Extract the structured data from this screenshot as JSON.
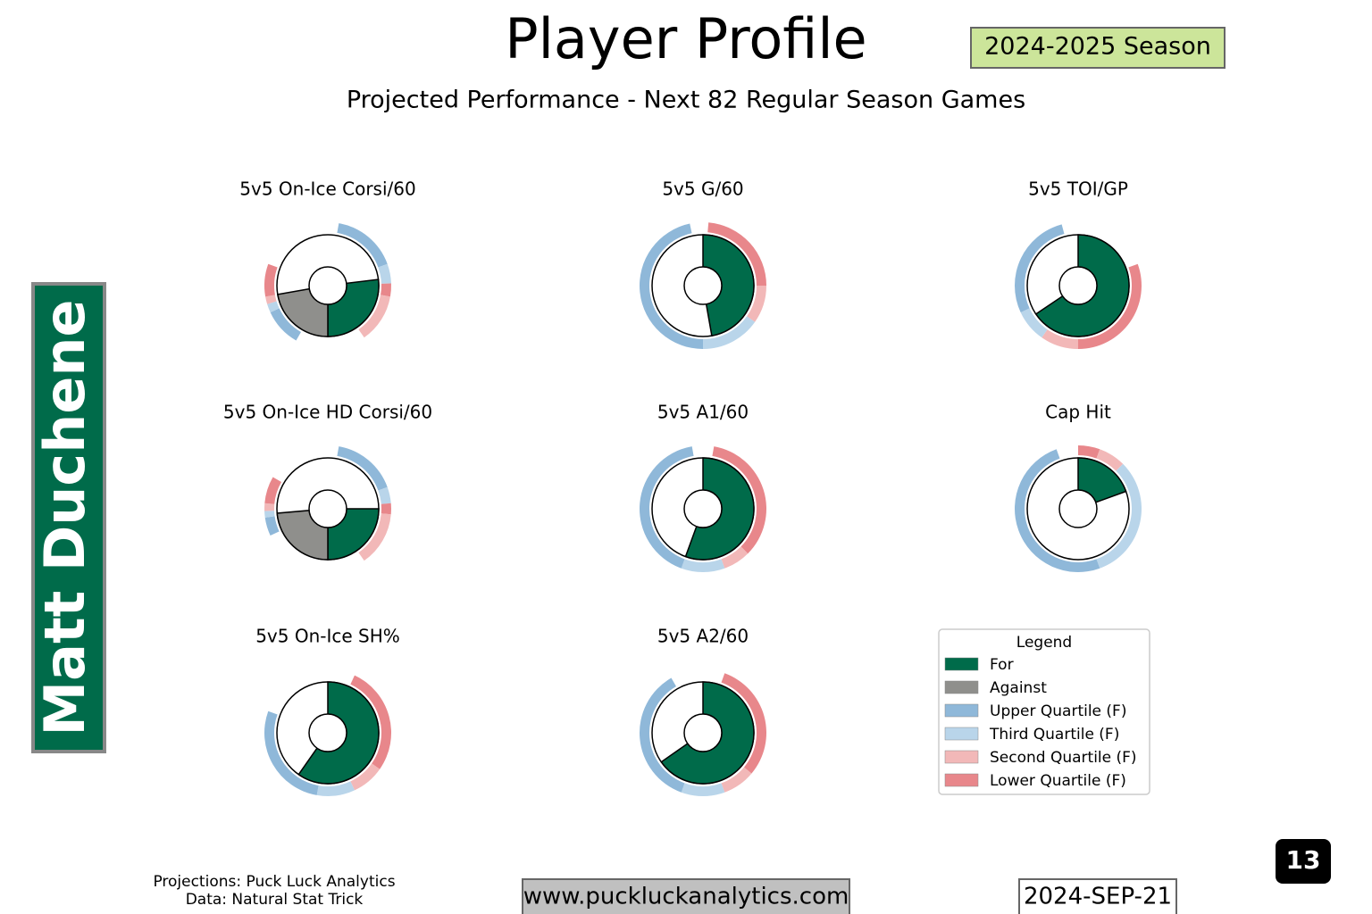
{
  "title": "Player Profile",
  "subtitle": "Projected Performance - Next 82 Regular Season Games",
  "season": "2024-2025 Season",
  "player": "Matt Duchene",
  "page_number": 13,
  "credits": [
    "Projections: Puck Luck Analytics",
    "Data: Natural Stat Trick"
  ],
  "website": "www.puckluckanalytics.com",
  "date": "2024-SEP-21",
  "legend": {
    "title": "Legend",
    "series": [
      {
        "name": "For",
        "color": "#006b4a"
      },
      {
        "name": "Against",
        "color": "#8f8f8c"
      },
      {
        "name": "Upper Quartile (F)",
        "color": "#8fb8d9"
      },
      {
        "name": "Third Quartile (F)",
        "color": "#b9d5ea"
      },
      {
        "name": "Second Quartile (F)",
        "color": "#f2b8b8"
      },
      {
        "name": "Lower Quartile (F)",
        "color": "#e8878b"
      }
    ]
  },
  "chart_data": [
    {
      "type": "donut",
      "title": "5v5 On-Ice Corsi/60",
      "wedges": [
        {
          "series": 0,
          "start": 83,
          "end": 180
        },
        {
          "series": 1,
          "start": 180,
          "end": 260
        }
      ],
      "ring": [
        {
          "series": 2,
          "start": 10,
          "end": 70
        },
        {
          "series": 3,
          "start": 70,
          "end": 88
        },
        {
          "series": 5,
          "start": 88,
          "end": 100
        },
        {
          "series": 4,
          "start": 100,
          "end": 145
        },
        {
          "series": 2,
          "start": 210,
          "end": 245
        },
        {
          "series": 3,
          "start": 245,
          "end": 253
        },
        {
          "series": 4,
          "start": 253,
          "end": 260
        },
        {
          "series": 5,
          "start": 260,
          "end": 290
        }
      ]
    },
    {
      "type": "donut",
      "title": "5v5 G/60",
      "wedges": [
        {
          "series": 0,
          "start": 0,
          "end": 170
        }
      ],
      "ring": [
        {
          "series": 5,
          "start": 5,
          "end": 90
        },
        {
          "series": 4,
          "start": 90,
          "end": 125
        },
        {
          "series": 3,
          "start": 125,
          "end": 180
        },
        {
          "series": 2,
          "start": 180,
          "end": 348
        }
      ]
    },
    {
      "type": "donut",
      "title": "5v5 TOI/GP",
      "wedges": [
        {
          "series": 0,
          "start": 0,
          "end": 236
        }
      ],
      "ring": [
        {
          "series": 5,
          "start": 70,
          "end": 180
        },
        {
          "series": 4,
          "start": 180,
          "end": 215
        },
        {
          "series": 3,
          "start": 215,
          "end": 245
        },
        {
          "series": 2,
          "start": 245,
          "end": 345
        }
      ]
    },
    {
      "type": "donut",
      "title": "5v5 On-Ice HD Corsi/60",
      "wedges": [
        {
          "series": 0,
          "start": 90,
          "end": 180
        },
        {
          "series": 1,
          "start": 180,
          "end": 265
        }
      ],
      "ring": [
        {
          "series": 2,
          "start": 10,
          "end": 70
        },
        {
          "series": 3,
          "start": 70,
          "end": 85
        },
        {
          "series": 5,
          "start": 85,
          "end": 95
        },
        {
          "series": 4,
          "start": 95,
          "end": 145
        },
        {
          "series": 2,
          "start": 245,
          "end": 262
        },
        {
          "series": 3,
          "start": 262,
          "end": 268
        },
        {
          "series": 4,
          "start": 268,
          "end": 275
        },
        {
          "series": 5,
          "start": 275,
          "end": 300
        }
      ]
    },
    {
      "type": "donut",
      "title": "5v5 A1/60",
      "wedges": [
        {
          "series": 0,
          "start": 0,
          "end": 200
        }
      ],
      "ring": [
        {
          "series": 5,
          "start": 10,
          "end": 135
        },
        {
          "series": 4,
          "start": 135,
          "end": 160
        },
        {
          "series": 3,
          "start": 160,
          "end": 200
        },
        {
          "series": 2,
          "start": 200,
          "end": 350
        }
      ]
    },
    {
      "type": "donut",
      "title": "Cap Hit",
      "wedges": [
        {
          "series": 0,
          "start": 0,
          "end": 70
        }
      ],
      "ring": [
        {
          "series": 5,
          "start": 0,
          "end": 20
        },
        {
          "series": 4,
          "start": 20,
          "end": 45
        },
        {
          "series": 3,
          "start": 45,
          "end": 160
        },
        {
          "series": 2,
          "start": 160,
          "end": 340
        }
      ]
    },
    {
      "type": "donut",
      "title": "5v5 On-Ice SH%",
      "wedges": [
        {
          "series": 0,
          "start": 0,
          "end": 215
        }
      ],
      "ring": [
        {
          "series": 5,
          "start": 25,
          "end": 125
        },
        {
          "series": 4,
          "start": 125,
          "end": 155
        },
        {
          "series": 3,
          "start": 155,
          "end": 190
        },
        {
          "series": 2,
          "start": 190,
          "end": 290
        }
      ]
    },
    {
      "type": "donut",
      "title": "5v5 A2/60",
      "wedges": [
        {
          "series": 0,
          "start": 0,
          "end": 235
        }
      ],
      "ring": [
        {
          "series": 5,
          "start": 20,
          "end": 130
        },
        {
          "series": 4,
          "start": 130,
          "end": 160
        },
        {
          "series": 3,
          "start": 160,
          "end": 200
        },
        {
          "series": 2,
          "start": 200,
          "end": 330
        }
      ]
    }
  ]
}
